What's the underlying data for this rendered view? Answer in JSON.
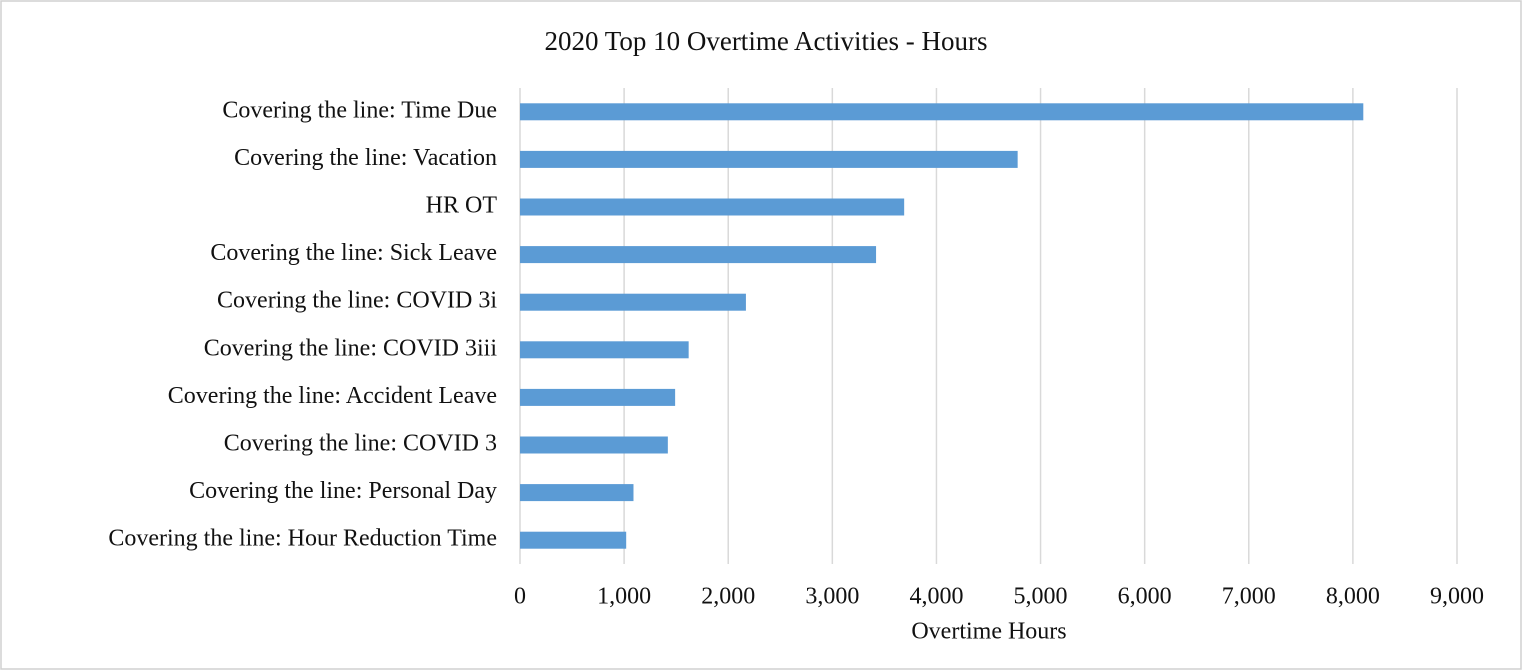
{
  "chart_data": {
    "type": "bar",
    "orientation": "horizontal",
    "title": "2020 Top 10 Overtime Activities - Hours",
    "x_label": "Overtime Hours",
    "categories": [
      "Covering the line: Time Due",
      "Covering the line: Vacation",
      "HR OT",
      "Covering the line: Sick Leave",
      "Covering the line: COVID 3i",
      "Covering the line: COVID 3iii",
      "Covering the line: Accident Leave",
      "Covering the line: COVID 3",
      "Covering the line: Personal Day",
      "Covering the line: Hour Reduction Time"
    ],
    "values": [
      8100,
      4780,
      3690,
      3420,
      2170,
      1620,
      1490,
      1420,
      1090,
      1020
    ],
    "color": "#5b9bd5",
    "xlim": [
      0,
      9000
    ],
    "xticks": [
      0,
      {
        "value": 1000,
        "label": "1,000"
      },
      {
        "value": 2000,
        "label": "2,000"
      },
      {
        "value": 3000,
        "label": "3,000"
      },
      {
        "value": 4000,
        "label": "4,000"
      },
      {
        "value": 5000,
        "label": "5,000"
      },
      {
        "value": 6000,
        "label": "6,000"
      },
      {
        "value": 7000,
        "label": "7,000"
      },
      {
        "value": 8000,
        "label": "8,000"
      },
      {
        "value": 9000,
        "label": "9,000"
      }
    ],
    "grid": true
  }
}
